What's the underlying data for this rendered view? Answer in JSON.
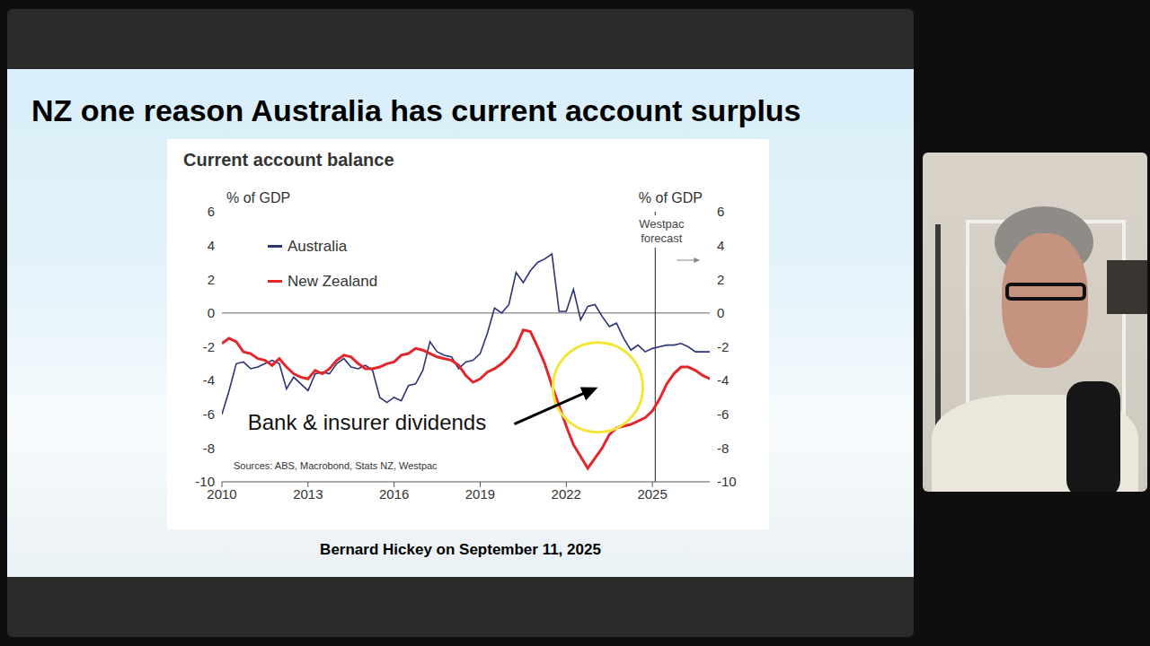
{
  "slide": {
    "title": "NZ one reason Australia has current account surplus",
    "footer": "Bernard Hickey on September 11, 2025"
  },
  "chart_data": {
    "type": "line",
    "title": "Current account balance",
    "y_label": "% of GDP",
    "y2_label": "% of GDP",
    "source": "Sources: ABS, Macrobond, Stats NZ, Westpac",
    "x": [
      2010,
      2010.25,
      2010.5,
      2010.75,
      2011,
      2011.25,
      2011.5,
      2011.75,
      2012,
      2012.25,
      2012.5,
      2012.75,
      2013,
      2013.25,
      2013.5,
      2013.75,
      2014,
      2014.25,
      2014.5,
      2014.75,
      2015,
      2015.25,
      2015.5,
      2015.75,
      2016,
      2016.25,
      2016.5,
      2016.75,
      2017,
      2017.25,
      2017.5,
      2017.75,
      2018,
      2018.25,
      2018.5,
      2018.75,
      2019,
      2019.25,
      2019.5,
      2019.75,
      2020,
      2020.25,
      2020.5,
      2020.75,
      2021,
      2021.25,
      2021.5,
      2021.75,
      2022,
      2022.25,
      2022.5,
      2022.75,
      2023,
      2023.25,
      2023.5,
      2023.75,
      2024,
      2024.25,
      2024.5,
      2024.75,
      2025,
      2025.25,
      2025.5,
      2025.75,
      2026,
      2026.25,
      2026.5,
      2026.75,
      2027
    ],
    "series": [
      {
        "name": "Australia",
        "color": "#2b3475",
        "values": [
          -6.0,
          -4.6,
          -3.0,
          -2.9,
          -3.3,
          -3.2,
          -3.0,
          -2.8,
          -3.0,
          -4.5,
          -3.8,
          -4.2,
          -4.6,
          -3.6,
          -3.5,
          -3.6,
          -3.0,
          -2.7,
          -3.2,
          -3.3,
          -3.1,
          -3.4,
          -5.0,
          -5.3,
          -5.0,
          -5.2,
          -4.3,
          -4.2,
          -3.4,
          -1.7,
          -2.3,
          -2.5,
          -2.6,
          -3.3,
          -2.9,
          -2.8,
          -2.4,
          -1.2,
          0.3,
          0.0,
          0.5,
          2.4,
          1.8,
          2.5,
          3.0,
          3.2,
          3.5,
          0.1,
          0.1,
          1.4,
          -0.4,
          0.4,
          0.5,
          -0.2,
          -0.8,
          -0.6,
          -1.5,
          -2.2,
          -1.9,
          -2.3,
          -2.1,
          -2.0,
          -1.9,
          -1.9,
          -1.8,
          -2.0,
          -2.3,
          -2.3,
          -2.3
        ]
      },
      {
        "name": "New Zealand",
        "color": "#e3262b",
        "values": [
          -1.8,
          -1.5,
          -1.7,
          -2.3,
          -2.4,
          -2.7,
          -2.8,
          -3.1,
          -2.7,
          -3.2,
          -3.6,
          -3.8,
          -3.9,
          -3.4,
          -3.6,
          -3.3,
          -2.8,
          -2.5,
          -2.6,
          -3.0,
          -3.3,
          -3.3,
          -3.2,
          -3.0,
          -2.9,
          -2.5,
          -2.4,
          -2.1,
          -2.2,
          -2.4,
          -2.6,
          -2.7,
          -2.8,
          -3.1,
          -3.7,
          -4.1,
          -3.9,
          -3.5,
          -3.3,
          -3.0,
          -2.6,
          -2.0,
          -1.0,
          -1.1,
          -2.0,
          -3.0,
          -4.3,
          -5.5,
          -6.7,
          -7.8,
          -8.5,
          -9.2,
          -8.6,
          -8.0,
          -7.2,
          -6.8,
          -6.7,
          -6.6,
          -6.4,
          -6.2,
          -5.8,
          -5.1,
          -4.2,
          -3.6,
          -3.2,
          -3.2,
          -3.4,
          -3.7,
          -3.9
        ]
      }
    ],
    "xlim": [
      2010,
      2027
    ],
    "xticks": [
      2010,
      2013,
      2016,
      2019,
      2022,
      2025
    ],
    "ylim": [
      -10,
      6
    ],
    "yticks": [
      -10,
      -8,
      -6,
      -4,
      -2,
      0,
      2,
      4,
      6
    ],
    "y2lim": [
      -10,
      6
    ],
    "y2ticks": [
      -10,
      -8,
      -6,
      -4,
      -2,
      0,
      2,
      4,
      6
    ],
    "grid": false,
    "legend": "upper left",
    "annotations": [
      {
        "text": "Bank & insurer dividends",
        "x": 2010.9,
        "y": -6.6,
        "target": {
          "x": 2023.1,
          "y": -4.4
        }
      },
      {
        "text": "Westpac forecast",
        "x": 2025.1
      }
    ]
  }
}
